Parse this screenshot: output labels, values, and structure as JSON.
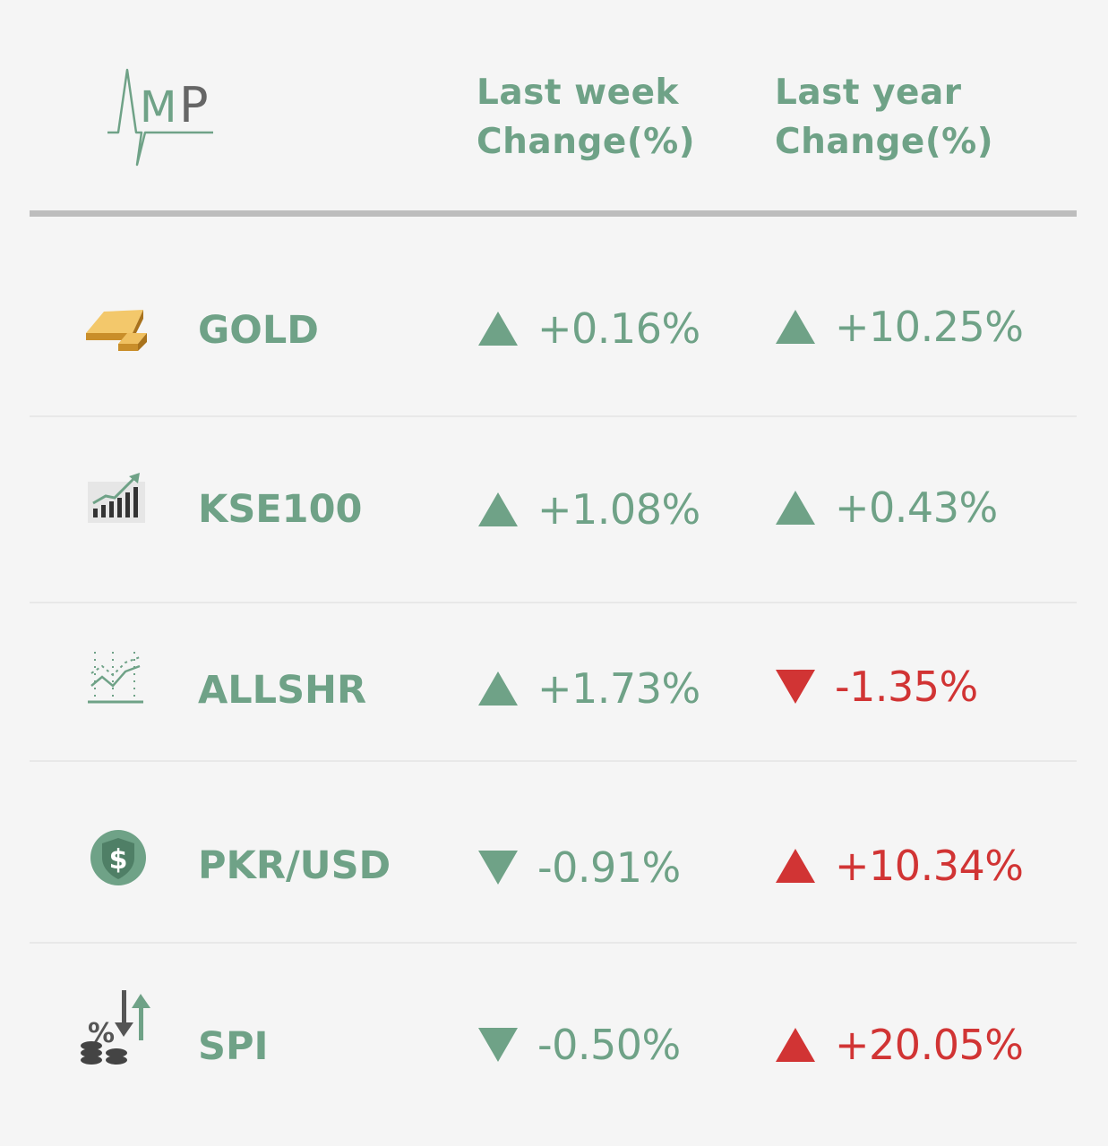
{
  "logo": {
    "text": "MP"
  },
  "header": {
    "week_line1": "Last week",
    "week_line2": "Change(%)",
    "year_line1": "Last year",
    "year_line2": "Change(%)"
  },
  "colors": {
    "green": "#6fa287",
    "red": "#d13434",
    "rule": "#bdbdbd"
  },
  "rows": [
    {
      "name": "GOLD",
      "icon": "gold-bars-icon",
      "week": "+0.16%",
      "week_dir": "up",
      "week_color": "green",
      "year": "+10.25%",
      "year_dir": "up",
      "year_color": "green"
    },
    {
      "name": "KSE100",
      "icon": "bar-chart-growth-icon",
      "week": "+1.08%",
      "week_dir": "up",
      "week_color": "green",
      "year": "+0.43%",
      "year_dir": "up",
      "year_color": "green"
    },
    {
      "name": "ALLSHR",
      "icon": "line-chart-icon",
      "week": "+1.73%",
      "week_dir": "up",
      "week_color": "green",
      "year": "-1.35%",
      "year_dir": "down",
      "year_color": "red"
    },
    {
      "name": "PKR/USD",
      "icon": "dollar-shield-icon",
      "week": "-0.91%",
      "week_dir": "down",
      "week_color": "green",
      "year": "+10.34%",
      "year_dir": "up",
      "year_color": "red"
    },
    {
      "name": "SPI",
      "icon": "percent-coins-icon",
      "week": "-0.50%",
      "week_dir": "down",
      "week_color": "green",
      "year": "+20.05%",
      "year_dir": "up",
      "year_color": "red"
    }
  ]
}
